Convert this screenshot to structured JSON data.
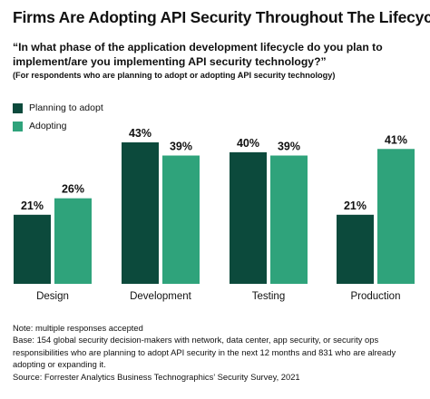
{
  "title": "Firms Are Adopting API Security Throughout The Lifecycle",
  "subtitle": "“In what phase of the application development lifecycle do you plan to implement/are you implementing API security technology?”",
  "respondents_note": "(For respondents who are planning to adopt or adopting API security technology)",
  "colors": {
    "planning": "#0c4a3c",
    "adopting": "#2fa37b"
  },
  "chart_data": {
    "type": "bar",
    "categories": [
      "Design",
      "Development",
      "Testing",
      "Production"
    ],
    "series": [
      {
        "name": "Planning to adopt",
        "values": [
          21,
          43,
          40,
          21
        ],
        "labels": [
          "21%",
          "43%",
          "40%",
          "21%"
        ]
      },
      {
        "name": "Adopting",
        "values": [
          26,
          39,
          39,
          41
        ],
        "labels": [
          "26%",
          "39%",
          "39%",
          "41%"
        ]
      }
    ],
    "unit": "%",
    "ylim": [
      0,
      43
    ],
    "legend": "top-left",
    "grid": false
  },
  "notes": {
    "line1": "Note: multiple responses accepted",
    "line2": "Base: 154 global security decision-makers with network, data center, app security, or security ops",
    "line3": "responsibilities who are planning to adopt API security in the next 12 months and 831 who are already",
    "line4": "adopting or expanding it.",
    "line5": "Source: Forrester Analytics Business Technographics’ Security Survey, 2021"
  }
}
